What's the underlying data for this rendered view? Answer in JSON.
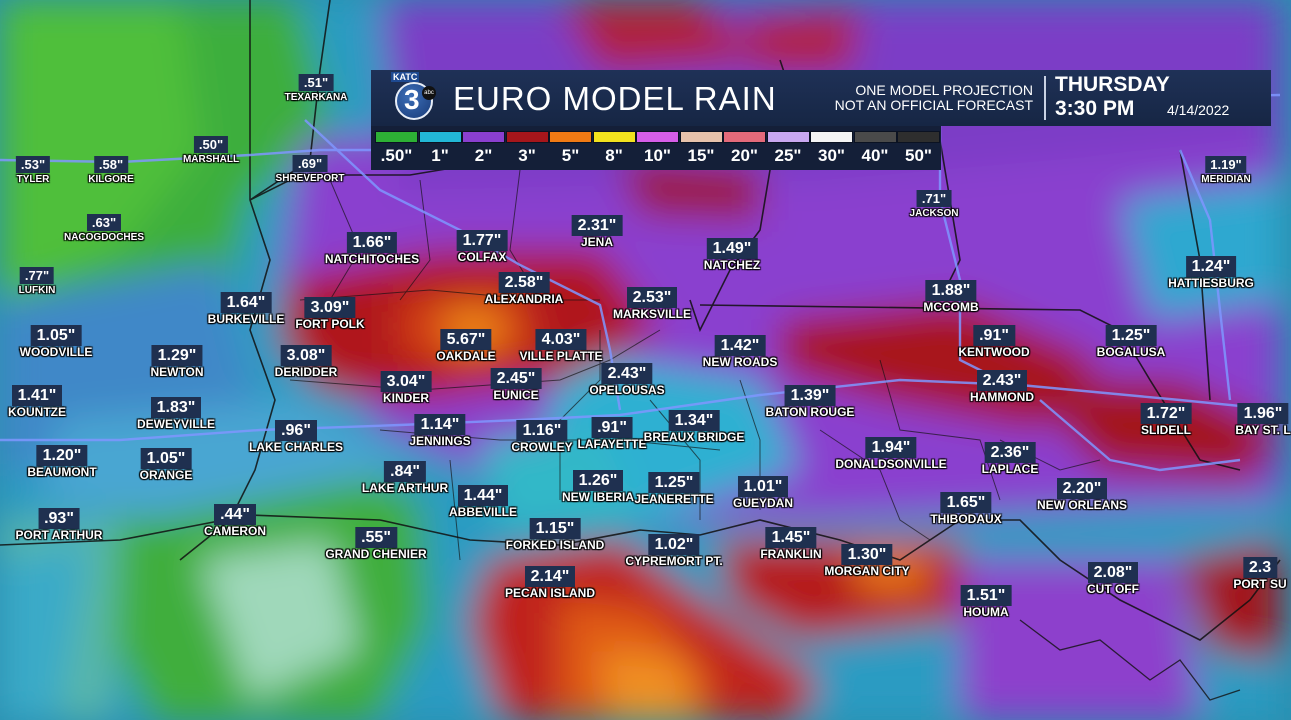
{
  "header": {
    "logo": {
      "station": "KATC",
      "number": "3",
      "network": "abc"
    },
    "title": "EURO MODEL RAIN",
    "disclaimer_line1": "ONE MODEL PROJECTION",
    "disclaimer_line2": "NOT AN OFFICIAL FORECAST",
    "day": "THURSDAY",
    "time": "3:30 PM",
    "date": "4/14/2022"
  },
  "legend": [
    {
      "label": ".50\"",
      "color": "#2db035"
    },
    {
      "label": "1\"",
      "color": "#22b7d6"
    },
    {
      "label": "2\"",
      "color": "#8a3fcf"
    },
    {
      "label": "3\"",
      "color": "#a6161b"
    },
    {
      "label": "5\"",
      "color": "#f07a14"
    },
    {
      "label": "8\"",
      "color": "#f2e21e"
    },
    {
      "label": "10\"",
      "color": "#d65ee8"
    },
    {
      "label": "15\"",
      "color": "#e7c2ab"
    },
    {
      "label": "20\"",
      "color": "#e46a7a"
    },
    {
      "label": "25\"",
      "color": "#c9a8f0"
    },
    {
      "label": "30\"",
      "color": "#f4f4f4"
    },
    {
      "label": "40\"",
      "color": "#4a4a4a"
    },
    {
      "label": "50\"",
      "color": "#2e2e2e"
    }
  ],
  "cities": [
    {
      "value": ".51\"",
      "name": "TEXARKANA",
      "size": "small"
    },
    {
      "value": ".53\"",
      "name": "TYLER",
      "size": "small"
    },
    {
      "value": ".58\"",
      "name": "KILGORE",
      "size": "small"
    },
    {
      "value": ".50\"",
      "name": "MARSHALL",
      "size": "small"
    },
    {
      "value": ".69\"",
      "name": "SHREVEPORT",
      "size": "small"
    },
    {
      "value": ".63\"",
      "name": "NACOGDOCHES",
      "size": "small"
    },
    {
      "value": ".77\"",
      "name": "LUFKIN",
      "size": "small"
    },
    {
      "value": "1.05\"",
      "name": "WOODVILLE",
      "size": "normal"
    },
    {
      "value": "1.41\"",
      "name": "KOUNTZE",
      "size": "normal"
    },
    {
      "value": "1.20\"",
      "name": "BEAUMONT",
      "size": "normal"
    },
    {
      "value": ".93\"",
      "name": "PORT ARTHUR",
      "size": "normal"
    },
    {
      "value": "1.66\"",
      "name": "NATCHITOCHES",
      "size": "normal"
    },
    {
      "value": "1.77\"",
      "name": "COLFAX",
      "size": "normal"
    },
    {
      "value": "2.31\"",
      "name": "JENA",
      "size": "normal"
    },
    {
      "value": "1.49\"",
      "name": "NATCHEZ",
      "size": "normal"
    },
    {
      "value": ".71\"",
      "name": "JACKSON",
      "size": "small"
    },
    {
      "value": "1.19\"",
      "name": "MERIDIAN",
      "size": "small"
    },
    {
      "value": "1.24\"",
      "name": "HATTIESBURG",
      "size": "normal"
    },
    {
      "value": "2.58\"",
      "name": "ALEXANDRIA",
      "size": "normal"
    },
    {
      "value": "2.53\"",
      "name": "MARKSVILLE",
      "size": "normal"
    },
    {
      "value": "1.88\"",
      "name": "MCCOMB",
      "size": "normal"
    },
    {
      "value": "1.64\"",
      "name": "BURKEVILLE",
      "size": "normal"
    },
    {
      "value": "3.09\"",
      "name": "FORT POLK",
      "size": "normal"
    },
    {
      "value": "5.67\"",
      "name": "OAKDALE",
      "size": "normal"
    },
    {
      "value": "4.03\"",
      "name": "VILLE PLATTE",
      "size": "normal"
    },
    {
      "value": "1.42\"",
      "name": "NEW ROADS",
      "size": "normal"
    },
    {
      "value": ".91\"",
      "name": "KENTWOOD",
      "size": "normal"
    },
    {
      "value": "1.25\"",
      "name": "BOGALUSA",
      "size": "normal"
    },
    {
      "value": "1.29\"",
      "name": "NEWTON",
      "size": "normal"
    },
    {
      "value": "3.08\"",
      "name": "DERIDDER",
      "size": "normal"
    },
    {
      "value": "3.04\"",
      "name": "KINDER",
      "size": "normal"
    },
    {
      "value": "2.45\"",
      "name": "EUNICE",
      "size": "normal"
    },
    {
      "value": "2.43\"",
      "name": "OPELOUSAS",
      "size": "normal"
    },
    {
      "value": "2.43\"",
      "name": "HAMMOND",
      "size": "normal"
    },
    {
      "value": "1.83\"",
      "name": "DEWEYVILLE",
      "size": "normal"
    },
    {
      "value": "1.39\"",
      "name": "BATON ROUGE",
      "size": "normal"
    },
    {
      "value": "1.72\"",
      "name": "SLIDELL",
      "size": "normal"
    },
    {
      "value": "1.96\"",
      "name": "BAY ST. L",
      "size": "normal"
    },
    {
      "value": ".96\"",
      "name": "LAKE CHARLES",
      "size": "normal"
    },
    {
      "value": "1.14\"",
      "name": "JENNINGS",
      "size": "normal"
    },
    {
      "value": "1.16\"",
      "name": "CROWLEY",
      "size": "normal"
    },
    {
      "value": ".91\"",
      "name": "LAFAYETTE",
      "size": "normal"
    },
    {
      "value": "1.34\"",
      "name": "BREAUX BRIDGE",
      "size": "normal"
    },
    {
      "value": "1.94\"",
      "name": "DONALDSONVILLE",
      "size": "normal"
    },
    {
      "value": "2.36\"",
      "name": "LAPLACE",
      "size": "normal"
    },
    {
      "value": "1.05\"",
      "name": "ORANGE",
      "size": "normal"
    },
    {
      "value": ".84\"",
      "name": "LAKE ARTHUR",
      "size": "normal"
    },
    {
      "value": "1.44\"",
      "name": "ABBEVILLE",
      "size": "normal"
    },
    {
      "value": "1.26\"",
      "name": "NEW IBERIA",
      "size": "normal"
    },
    {
      "value": "1.25\"",
      "name": "JEANERETTE",
      "size": "normal"
    },
    {
      "value": "1.01\"",
      "name": "GUEYDAN",
      "size": "normal"
    },
    {
      "value": "2.20\"",
      "name": "NEW ORLEANS",
      "size": "normal"
    },
    {
      "value": "1.65\"",
      "name": "THIBODAUX",
      "size": "normal"
    },
    {
      "value": ".44\"",
      "name": "CAMERON",
      "size": "normal"
    },
    {
      "value": "1.15\"",
      "name": "FORKED ISLAND",
      "size": "normal"
    },
    {
      "value": "1.02\"",
      "name": "CYPREMORT PT.",
      "size": "normal"
    },
    {
      "value": "1.45\"",
      "name": "FRANKLIN",
      "size": "normal"
    },
    {
      "value": ".55\"",
      "name": "GRAND CHENIER",
      "size": "normal"
    },
    {
      "value": "1.30\"",
      "name": "MORGAN CITY",
      "size": "normal"
    },
    {
      "value": "2.14\"",
      "name": "PECAN ISLAND",
      "size": "normal"
    },
    {
      "value": "2.08\"",
      "name": "CUT OFF",
      "size": "normal"
    },
    {
      "value": "2.3",
      "name": "PORT SU",
      "size": "normal"
    },
    {
      "value": "1.51\"",
      "name": "HOUMA",
      "size": "normal"
    }
  ]
}
